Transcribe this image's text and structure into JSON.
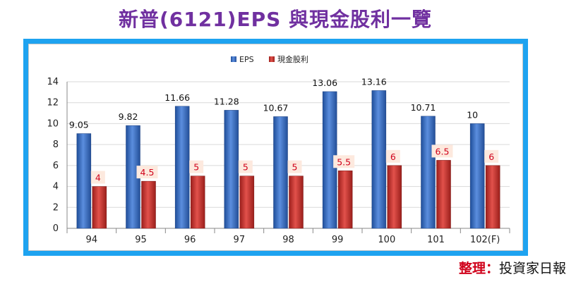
{
  "title": "新普(6121)EPS 與現金股利一覽",
  "credit": {
    "label": "整理：",
    "source": "投資家日報"
  },
  "colors": {
    "title": "#7030a0",
    "frame": "#1ea3f0",
    "eps": "#2f5fb0",
    "dividend": "#c0302c",
    "credit": "#d0021b"
  },
  "chart_data": {
    "type": "bar",
    "title": "",
    "xlabel": "",
    "ylabel": "",
    "categories": [
      "94",
      "95",
      "96",
      "97",
      "98",
      "99",
      "100",
      "101",
      "102(F)"
    ],
    "series": [
      {
        "name": "EPS",
        "values": [
          9.05,
          9.82,
          11.66,
          11.28,
          10.67,
          13.06,
          13.16,
          10.71,
          10
        ],
        "labels": [
          "9.05",
          "9.82",
          "11.66",
          "11.28",
          "10.67",
          "13.06",
          "13.16",
          "10.71",
          "10"
        ]
      },
      {
        "name": "現金股利",
        "values": [
          4,
          4.5,
          5,
          5,
          5,
          5.5,
          6,
          6.5,
          6
        ],
        "labels": [
          "4",
          "4.5",
          "5",
          "5",
          "5",
          "5.5",
          "6",
          "6.5",
          "6"
        ]
      }
    ],
    "ylim": [
      0,
      14
    ],
    "yticks": [
      "0",
      "2",
      "4",
      "6",
      "8",
      "10",
      "12",
      "14"
    ],
    "grid": true,
    "legend": "top-center"
  }
}
